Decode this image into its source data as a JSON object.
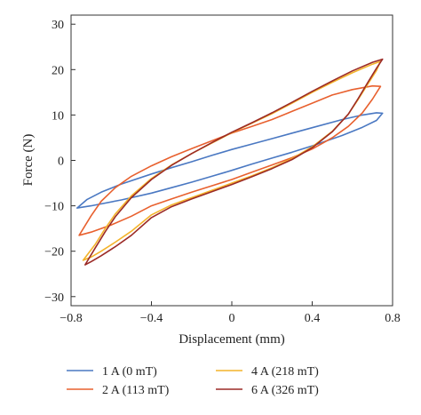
{
  "chart_data": {
    "type": "line",
    "title": "",
    "xlabel": "Displacement (mm)",
    "ylabel": "Force (N)",
    "xlim": [
      -0.8,
      0.8
    ],
    "ylim": [
      -32,
      32
    ],
    "x_ticks": [
      "−0.8",
      "−0.4",
      "0",
      "0.4",
      "0.8"
    ],
    "x_tick_values": [
      -0.8,
      -0.4,
      0,
      0.4,
      0.8
    ],
    "y_ticks": [
      "−30",
      "−20",
      "−10",
      "0",
      "10",
      "20",
      "30"
    ],
    "y_tick_values": [
      -30,
      -20,
      -10,
      0,
      10,
      20,
      30
    ],
    "grid": false,
    "legend_position": "bottom",
    "series": [
      {
        "name": "1 A (0 mT)",
        "color": "#4a78c2",
        "x": [
          -0.77,
          -0.7,
          -0.55,
          -0.4,
          -0.3,
          -0.2,
          -0.1,
          0.0,
          0.1,
          0.2,
          0.3,
          0.4,
          0.55,
          0.65,
          0.72,
          0.75,
          0.72,
          0.65,
          0.55,
          0.4,
          0.3,
          0.2,
          0.1,
          0.0,
          -0.1,
          -0.2,
          -0.3,
          -0.4,
          -0.55,
          -0.65,
          -0.72,
          -0.77
        ],
        "y": [
          -10.5,
          -10.0,
          -8.7,
          -7.2,
          -6.0,
          -4.8,
          -3.5,
          -2.2,
          -0.8,
          0.5,
          1.8,
          3.2,
          5.5,
          7.3,
          8.8,
          10.4,
          10.5,
          10.0,
          9.0,
          7.2,
          6.0,
          4.8,
          3.6,
          2.4,
          1.1,
          -0.3,
          -1.6,
          -3.0,
          -5.2,
          -7.0,
          -8.6,
          -10.5
        ]
      },
      {
        "name": "2 A (113 mT)",
        "color": "#e8602e",
        "x": [
          -0.76,
          -0.7,
          -0.6,
          -0.5,
          -0.4,
          -0.3,
          -0.2,
          -0.1,
          0.0,
          0.1,
          0.2,
          0.3,
          0.4,
          0.5,
          0.58,
          0.65,
          0.7,
          0.74,
          0.7,
          0.6,
          0.5,
          0.4,
          0.3,
          0.2,
          0.1,
          0.0,
          -0.1,
          -0.2,
          -0.3,
          -0.4,
          -0.5,
          -0.58,
          -0.65,
          -0.7,
          -0.76
        ],
        "y": [
          -16.5,
          -15.8,
          -14.2,
          -12.3,
          -10.0,
          -8.5,
          -7.0,
          -5.6,
          -4.2,
          -2.6,
          -1.0,
          0.6,
          2.5,
          5.0,
          7.5,
          10.5,
          13.5,
          16.3,
          16.4,
          15.6,
          14.4,
          12.6,
          10.8,
          9.0,
          7.5,
          6.0,
          4.3,
          2.6,
          0.8,
          -1.2,
          -3.5,
          -6.0,
          -9.0,
          -12.2,
          -16.5
        ]
      },
      {
        "name": "4 A (218 mT)",
        "color": "#f4b32a",
        "x": [
          -0.74,
          -0.7,
          -0.65,
          -0.58,
          -0.5,
          -0.4,
          -0.3,
          -0.2,
          -0.1,
          0.0,
          0.1,
          0.2,
          0.3,
          0.4,
          0.5,
          0.58,
          0.63,
          0.68,
          0.72,
          0.74,
          0.7,
          0.6,
          0.5,
          0.4,
          0.3,
          0.2,
          0.1,
          0.0,
          -0.1,
          -0.2,
          -0.3,
          -0.4,
          -0.5,
          -0.58,
          -0.63,
          -0.68,
          -0.74
        ],
        "y": [
          -22.0,
          -21.3,
          -20.0,
          -18.0,
          -15.6,
          -12.0,
          -9.8,
          -8.2,
          -6.6,
          -5.0,
          -3.4,
          -1.6,
          0.4,
          3.0,
          6.4,
          10.2,
          13.5,
          17.0,
          19.8,
          21.8,
          21.2,
          19.3,
          17.2,
          15.0,
          12.6,
          10.3,
          8.2,
          6.1,
          3.8,
          1.5,
          -1.0,
          -4.0,
          -7.8,
          -11.8,
          -15.0,
          -18.5,
          -22.0
        ]
      },
      {
        "name": "6 A (326 mT)",
        "color": "#9b2a26",
        "x": [
          -0.73,
          -0.7,
          -0.65,
          -0.58,
          -0.5,
          -0.4,
          -0.3,
          -0.2,
          -0.1,
          0.0,
          0.1,
          0.2,
          0.3,
          0.4,
          0.5,
          0.58,
          0.63,
          0.68,
          0.72,
          0.75,
          0.7,
          0.6,
          0.5,
          0.4,
          0.3,
          0.2,
          0.1,
          0.0,
          -0.1,
          -0.2,
          -0.3,
          -0.4,
          -0.5,
          -0.58,
          -0.63,
          -0.68,
          -0.73
        ],
        "y": [
          -23.0,
          -22.3,
          -21.0,
          -19.0,
          -16.5,
          -12.6,
          -10.2,
          -8.5,
          -6.9,
          -5.3,
          -3.6,
          -1.8,
          0.2,
          2.8,
          6.3,
          10.2,
          13.7,
          17.4,
          20.3,
          22.3,
          21.6,
          19.7,
          17.5,
          15.2,
          12.8,
          10.5,
          8.3,
          6.2,
          3.9,
          1.5,
          -1.1,
          -4.2,
          -8.2,
          -12.4,
          -15.7,
          -19.3,
          -23.0
        ]
      }
    ]
  }
}
